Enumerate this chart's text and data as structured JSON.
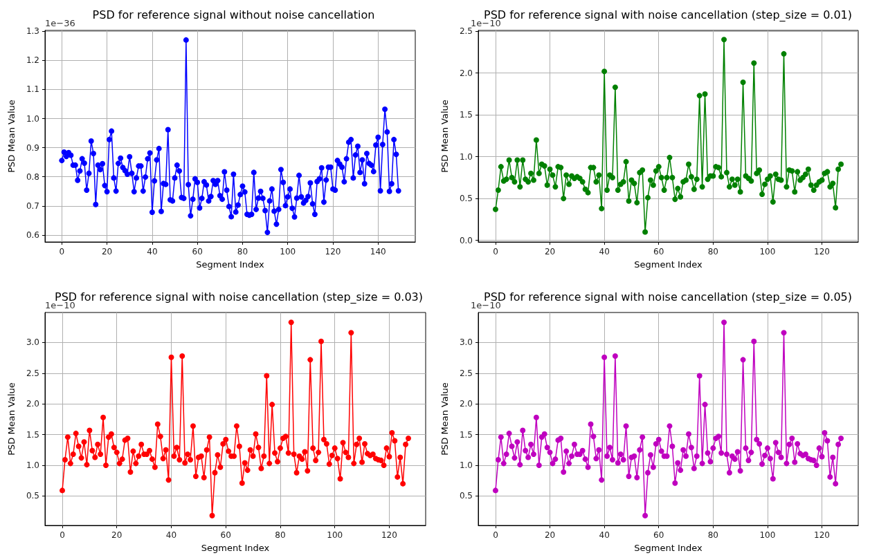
{
  "chart_data": [
    {
      "type": "line",
      "title": "PSD for reference signal without noise cancellation",
      "xlabel": "Segment Index",
      "ylabel": "PSD Mean Value",
      "annotations": [
        "1e−36"
      ],
      "marker": "circle",
      "grid": true,
      "xlim": [
        -7.45,
        156.45
      ],
      "xticks": [
        0,
        20,
        40,
        60,
        80,
        100,
        120,
        140
      ],
      "ylim": [
        0.576,
        1.303
      ],
      "yticks": [
        0.6,
        0.7,
        0.8,
        0.9,
        {
          "value": 1,
          "label": "1.0"
        },
        1.1,
        1.2,
        1.3
      ],
      "x": [
        0,
        1,
        2,
        3,
        4,
        5,
        6,
        7,
        8,
        9,
        10,
        11,
        12,
        13,
        14,
        15,
        16,
        17,
        18,
        19,
        20,
        21,
        22,
        23,
        24,
        25,
        26,
        27,
        28,
        29,
        30,
        31,
        32,
        33,
        34,
        35,
        36,
        37,
        38,
        39,
        40,
        41,
        42,
        43,
        44,
        45,
        46,
        47,
        48,
        49,
        50,
        51,
        52,
        53,
        54,
        55,
        56,
        57,
        58,
        59,
        60,
        61,
        62,
        63,
        64,
        65,
        66,
        67,
        68,
        69,
        70,
        71,
        72,
        73,
        74,
        75,
        76,
        77,
        78,
        79,
        80,
        81,
        82,
        83,
        84,
        85,
        86,
        87,
        88,
        89,
        90,
        91,
        92,
        93,
        94,
        95,
        96,
        97,
        98,
        99,
        100,
        101,
        102,
        103,
        104,
        105,
        106,
        107,
        108,
        109,
        110,
        111,
        112,
        113,
        114,
        115,
        116,
        117,
        118,
        119,
        120,
        121,
        122,
        123,
        124,
        125,
        126,
        127,
        128,
        129,
        130,
        131,
        132,
        133,
        134,
        135,
        136,
        137,
        138,
        139,
        140,
        141,
        142,
        143,
        144,
        145,
        146,
        147,
        148,
        149
      ],
      "series": [
        {
          "color": "#0000ff",
          "values": [
            0.856,
            0.885,
            0.87,
            0.883,
            0.874,
            0.84,
            0.84,
            0.788,
            0.82,
            0.862,
            0.847,
            0.754,
            0.812,
            0.923,
            0.88,
            0.705,
            0.84,
            0.825,
            0.845,
            0.77,
            0.749,
            0.928,
            0.957,
            0.796,
            0.751,
            0.846,
            0.864,
            0.832,
            0.821,
            0.809,
            0.869,
            0.812,
            0.749,
            0.796,
            0.837,
            0.837,
            0.751,
            0.799,
            0.862,
            0.882,
            0.678,
            0.786,
            0.858,
            0.897,
            0.681,
            0.777,
            0.774,
            0.962,
            0.721,
            0.717,
            0.796,
            0.84,
            0.82,
            0.729,
            0.726,
            1.27,
            0.773,
            0.666,
            0.723,
            0.793,
            0.781,
            0.693,
            0.726,
            0.783,
            0.772,
            0.717,
            0.732,
            0.787,
            0.774,
            0.787,
            0.735,
            0.723,
            0.817,
            0.754,
            0.698,
            0.663,
            0.809,
            0.679,
            0.703,
            0.739,
            0.768,
            0.748,
            0.671,
            0.668,
            0.671,
            0.815,
            0.688,
            0.727,
            0.75,
            0.726,
            0.684,
            0.609,
            0.717,
            0.758,
            0.682,
            0.637,
            0.688,
            0.825,
            0.781,
            0.701,
            0.731,
            0.758,
            0.692,
            0.662,
            0.727,
            0.805,
            0.731,
            0.71,
            0.719,
            0.732,
            0.779,
            0.707,
            0.671,
            0.784,
            0.793,
            0.831,
            0.713,
            0.789,
            0.833,
            0.833,
            0.758,
            0.754,
            0.856,
            0.844,
            0.833,
            0.783,
            0.862,
            0.919,
            0.928,
            0.796,
            0.875,
            0.905,
            0.815,
            0.858,
            0.776,
            0.88,
            0.846,
            0.84,
            0.818,
            0.909,
            0.936,
            0.752,
            0.911,
            1.032,
            0.954,
            0.75,
            0.776,
            0.928,
            0.877,
            0.752
          ]
        }
      ]
    },
    {
      "type": "line",
      "title": "PSD for reference signal with noise cancellation (step_size = 0.01)",
      "xlabel": "Segment Index",
      "ylabel": "PSD Mean Value",
      "annotations": [
        "1e−10"
      ],
      "marker": "circle",
      "grid": true,
      "xlim": [
        -6.35,
        133.35
      ],
      "xticks": [
        0,
        20,
        40,
        60,
        80,
        100,
        120
      ],
      "ylim": [
        -0.02,
        2.51
      ],
      "yticks": [
        {
          "value": 0,
          "label": "0.0"
        },
        0.5,
        {
          "value": 1,
          "label": "1.0"
        },
        1.5,
        {
          "value": 2,
          "label": "2.0"
        },
        2.5
      ],
      "x": [
        0,
        1,
        2,
        3,
        4,
        5,
        6,
        7,
        8,
        9,
        10,
        11,
        12,
        13,
        14,
        15,
        16,
        17,
        18,
        19,
        20,
        21,
        22,
        23,
        24,
        25,
        26,
        27,
        28,
        29,
        30,
        31,
        32,
        33,
        34,
        35,
        36,
        37,
        38,
        39,
        40,
        41,
        42,
        43,
        44,
        45,
        46,
        47,
        48,
        49,
        50,
        51,
        52,
        53,
        54,
        55,
        56,
        57,
        58,
        59,
        60,
        61,
        62,
        63,
        64,
        65,
        66,
        67,
        68,
        69,
        70,
        71,
        72,
        73,
        74,
        75,
        76,
        77,
        78,
        79,
        80,
        81,
        82,
        83,
        84,
        85,
        86,
        87,
        88,
        89,
        90,
        91,
        92,
        93,
        94,
        95,
        96,
        97,
        98,
        99,
        100,
        101,
        102,
        103,
        104,
        105,
        106,
        107,
        108,
        109,
        110,
        111,
        112,
        113,
        114,
        115,
        116,
        117,
        118,
        119,
        120,
        121,
        122,
        123,
        124,
        125,
        126,
        127
      ],
      "series": [
        {
          "color": "#008000",
          "values": [
            0.37,
            0.6,
            0.88,
            0.71,
            0.73,
            0.96,
            0.75,
            0.7,
            0.96,
            0.64,
            0.96,
            0.73,
            0.7,
            0.8,
            0.72,
            1.2,
            0.8,
            0.91,
            0.89,
            0.66,
            0.85,
            0.78,
            0.64,
            0.88,
            0.87,
            0.5,
            0.78,
            0.67,
            0.77,
            0.74,
            0.76,
            0.74,
            0.7,
            0.61,
            0.57,
            0.87,
            0.87,
            0.7,
            0.78,
            0.38,
            2.02,
            0.6,
            0.78,
            0.75,
            1.83,
            0.6,
            0.67,
            0.7,
            0.94,
            0.47,
            0.72,
            0.68,
            0.45,
            0.81,
            0.84,
            0.1,
            0.51,
            0.72,
            0.66,
            0.83,
            0.88,
            0.75,
            0.6,
            0.75,
            0.99,
            0.75,
            0.49,
            0.62,
            0.52,
            0.7,
            0.72,
            0.91,
            0.76,
            0.61,
            0.73,
            1.73,
            0.64,
            1.75,
            0.73,
            0.77,
            0.77,
            0.88,
            0.87,
            0.76,
            2.4,
            0.81,
            0.64,
            0.73,
            0.66,
            0.73,
            0.58,
            1.89,
            0.77,
            0.74,
            0.71,
            2.12,
            0.8,
            0.84,
            0.55,
            0.67,
            0.73,
            0.77,
            0.46,
            0.79,
            0.73,
            0.72,
            2.23,
            0.64,
            0.84,
            0.83,
            0.58,
            0.82,
            0.72,
            0.75,
            0.79,
            0.85,
            0.66,
            0.6,
            0.66,
            0.7,
            0.72,
            0.8,
            0.82,
            0.64,
            0.68,
            0.39,
            0.85,
            0.91
          ]
        }
      ]
    },
    {
      "type": "line",
      "title": "PSD for reference signal with noise cancellation (step_size = 0.03)",
      "xlabel": "Segment Index",
      "ylabel": "PSD Mean Value",
      "annotations": [
        "1e−10"
      ],
      "marker": "circle",
      "grid": true,
      "xlim": [
        -6.35,
        133.35
      ],
      "xticks": [
        0,
        20,
        40,
        60,
        80,
        100,
        120
      ],
      "ylim": [
        0.02,
        3.49
      ],
      "yticks": [
        0.5,
        {
          "value": 1,
          "label": "1.0"
        },
        1.5,
        {
          "value": 2,
          "label": "2.0"
        },
        2.5,
        {
          "value": 3,
          "label": "3.0"
        }
      ],
      "x": [
        0,
        1,
        2,
        3,
        4,
        5,
        6,
        7,
        8,
        9,
        10,
        11,
        12,
        13,
        14,
        15,
        16,
        17,
        18,
        19,
        20,
        21,
        22,
        23,
        24,
        25,
        26,
        27,
        28,
        29,
        30,
        31,
        32,
        33,
        34,
        35,
        36,
        37,
        38,
        39,
        40,
        41,
        42,
        43,
        44,
        45,
        46,
        47,
        48,
        49,
        50,
        51,
        52,
        53,
        54,
        55,
        56,
        57,
        58,
        59,
        60,
        61,
        62,
        63,
        64,
        65,
        66,
        67,
        68,
        69,
        70,
        71,
        72,
        73,
        74,
        75,
        76,
        77,
        78,
        79,
        80,
        81,
        82,
        83,
        84,
        85,
        86,
        87,
        88,
        89,
        90,
        91,
        92,
        93,
        94,
        95,
        96,
        97,
        98,
        99,
        100,
        101,
        102,
        103,
        104,
        105,
        106,
        107,
        108,
        109,
        110,
        111,
        112,
        113,
        114,
        115,
        116,
        117,
        118,
        119,
        120,
        121,
        122,
        123,
        124,
        125,
        126,
        127
      ],
      "series": [
        {
          "color": "#ff0000",
          "values": [
            0.59,
            1.09,
            1.46,
            1.03,
            1.18,
            1.52,
            1.31,
            1.12,
            1.38,
            1.01,
            1.57,
            1.24,
            1.13,
            1.34,
            1.18,
            1.78,
            1.0,
            1.46,
            1.51,
            1.29,
            1.21,
            1.03,
            1.1,
            1.41,
            1.44,
            0.89,
            1.23,
            1.03,
            1.15,
            1.34,
            1.18,
            1.18,
            1.24,
            1.1,
            0.97,
            1.67,
            1.47,
            1.11,
            1.25,
            0.76,
            2.76,
            1.15,
            1.29,
            1.09,
            2.78,
            1.04,
            1.18,
            1.09,
            1.64,
            0.82,
            1.13,
            1.15,
            0.8,
            1.25,
            1.46,
            0.18,
            0.88,
            1.17,
            0.97,
            1.35,
            1.42,
            1.23,
            1.15,
            1.15,
            1.64,
            1.31,
            0.71,
            1.04,
            0.92,
            1.25,
            1.15,
            1.51,
            1.29,
            0.95,
            1.15,
            2.46,
            1.03,
            1.99,
            1.2,
            1.06,
            1.28,
            1.44,
            1.47,
            1.2,
            3.33,
            1.18,
            0.88,
            1.15,
            1.1,
            1.22,
            0.91,
            2.72,
            1.28,
            1.08,
            1.21,
            3.02,
            1.42,
            1.35,
            1.02,
            1.16,
            1.28,
            1.11,
            0.78,
            1.37,
            1.21,
            1.13,
            3.16,
            1.03,
            1.34,
            1.44,
            1.05,
            1.35,
            1.19,
            1.16,
            1.18,
            1.11,
            1.09,
            1.08,
            1.0,
            1.28,
            1.14,
            1.53,
            1.4,
            0.81,
            1.13,
            0.7,
            1.34,
            1.44
          ]
        }
      ]
    },
    {
      "type": "line",
      "title": "PSD for reference signal with noise cancellation (step_size = 0.05)",
      "xlabel": "Segment Index",
      "ylabel": "PSD Mean Value",
      "annotations": [
        "1e−10"
      ],
      "marker": "circle",
      "grid": true,
      "xlim": [
        -6.35,
        133.35
      ],
      "xticks": [
        0,
        20,
        40,
        60,
        80,
        100,
        120
      ],
      "ylim": [
        0.02,
        3.49
      ],
      "yticks": [
        0.5,
        {
          "value": 1,
          "label": "1.0"
        },
        1.5,
        {
          "value": 2,
          "label": "2.0"
        },
        2.5,
        {
          "value": 3,
          "label": "3.0"
        }
      ],
      "x": [
        0,
        1,
        2,
        3,
        4,
        5,
        6,
        7,
        8,
        9,
        10,
        11,
        12,
        13,
        14,
        15,
        16,
        17,
        18,
        19,
        20,
        21,
        22,
        23,
        24,
        25,
        26,
        27,
        28,
        29,
        30,
        31,
        32,
        33,
        34,
        35,
        36,
        37,
        38,
        39,
        40,
        41,
        42,
        43,
        44,
        45,
        46,
        47,
        48,
        49,
        50,
        51,
        52,
        53,
        54,
        55,
        56,
        57,
        58,
        59,
        60,
        61,
        62,
        63,
        64,
        65,
        66,
        67,
        68,
        69,
        70,
        71,
        72,
        73,
        74,
        75,
        76,
        77,
        78,
        79,
        80,
        81,
        82,
        83,
        84,
        85,
        86,
        87,
        88,
        89,
        90,
        91,
        92,
        93,
        94,
        95,
        96,
        97,
        98,
        99,
        100,
        101,
        102,
        103,
        104,
        105,
        106,
        107,
        108,
        109,
        110,
        111,
        112,
        113,
        114,
        115,
        116,
        117,
        118,
        119,
        120,
        121,
        122,
        123,
        124,
        125,
        126,
        127
      ],
      "series": [
        {
          "color": "#bf00bf",
          "values": [
            0.59,
            1.09,
            1.46,
            1.03,
            1.18,
            1.52,
            1.31,
            1.12,
            1.38,
            1.01,
            1.57,
            1.24,
            1.13,
            1.34,
            1.18,
            1.78,
            1.0,
            1.46,
            1.51,
            1.29,
            1.21,
            1.03,
            1.1,
            1.41,
            1.44,
            0.89,
            1.23,
            1.03,
            1.15,
            1.34,
            1.18,
            1.18,
            1.24,
            1.1,
            0.97,
            1.67,
            1.47,
            1.11,
            1.25,
            0.76,
            2.76,
            1.15,
            1.29,
            1.09,
            2.78,
            1.04,
            1.18,
            1.09,
            1.64,
            0.82,
            1.13,
            1.15,
            0.8,
            1.25,
            1.46,
            0.18,
            0.88,
            1.17,
            0.97,
            1.35,
            1.42,
            1.23,
            1.15,
            1.15,
            1.64,
            1.31,
            0.71,
            1.04,
            0.92,
            1.25,
            1.15,
            1.51,
            1.29,
            0.95,
            1.15,
            2.46,
            1.03,
            1.99,
            1.2,
            1.06,
            1.28,
            1.44,
            1.47,
            1.2,
            3.33,
            1.18,
            0.88,
            1.15,
            1.1,
            1.22,
            0.91,
            2.72,
            1.28,
            1.08,
            1.21,
            3.02,
            1.42,
            1.35,
            1.02,
            1.16,
            1.28,
            1.11,
            0.78,
            1.37,
            1.21,
            1.13,
            3.16,
            1.03,
            1.34,
            1.44,
            1.05,
            1.35,
            1.19,
            1.16,
            1.18,
            1.11,
            1.09,
            1.08,
            1.0,
            1.28,
            1.14,
            1.53,
            1.4,
            0.81,
            1.13,
            0.7,
            1.34,
            1.44
          ]
        }
      ]
    }
  ]
}
